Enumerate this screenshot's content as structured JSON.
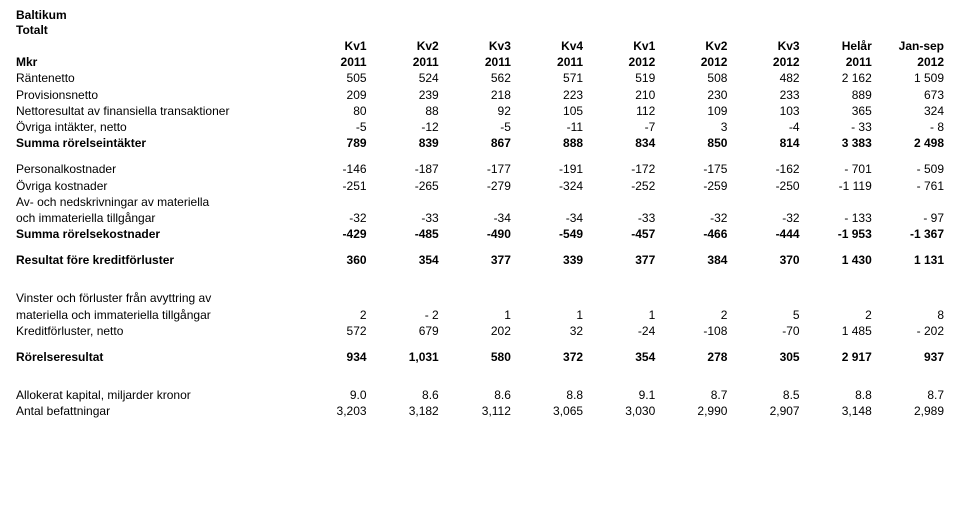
{
  "title1": "Baltikum",
  "title2": "Totalt",
  "columns": {
    "label_top": "",
    "label_bottom": "Mkr",
    "tops": [
      "Kv1",
      "Kv2",
      "Kv3",
      "Kv4",
      "Kv1",
      "Kv2",
      "Kv3",
      "Helår",
      "Jan-sep"
    ],
    "bottoms": [
      "2011",
      "2011",
      "2011",
      "2011",
      "2012",
      "2012",
      "2012",
      "2011",
      "2012"
    ]
  },
  "rows": [
    {
      "label": "Räntenetto",
      "vals": [
        "505",
        "524",
        "562",
        "571",
        "519",
        "508",
        "482",
        "2 162",
        "1 509"
      ]
    },
    {
      "label": "Provisionsnetto",
      "vals": [
        "209",
        "239",
        "218",
        "223",
        "210",
        "230",
        "233",
        "889",
        "673"
      ]
    },
    {
      "label": "Nettoresultat av finansiella transaktioner",
      "vals": [
        "80",
        "88",
        "92",
        "105",
        "112",
        "109",
        "103",
        "365",
        "324"
      ]
    },
    {
      "label": "Övriga intäkter, netto",
      "vals": [
        "-5",
        "-12",
        "-5",
        "-11",
        "-7",
        "3",
        "-4",
        "- 33",
        "- 8"
      ]
    },
    {
      "label": "Summa rörelseintäkter",
      "bold": true,
      "vals": [
        "789",
        "839",
        "867",
        "888",
        "834",
        "850",
        "814",
        "3 383",
        "2 498"
      ]
    },
    {
      "spacer": true
    },
    {
      "label": "Personalkostnader",
      "vals": [
        "-146",
        "-187",
        "-177",
        "-191",
        "-172",
        "-175",
        "-162",
        "- 701",
        "- 509"
      ]
    },
    {
      "label": "Övriga kostnader",
      "vals": [
        "-251",
        "-265",
        "-279",
        "-324",
        "-252",
        "-259",
        "-250",
        "-1 119",
        "- 761"
      ]
    },
    {
      "label": "Av- och nedskrivningar av materiella",
      "vals": [
        "",
        "",
        "",
        "",
        "",
        "",
        "",
        "",
        ""
      ]
    },
    {
      "label": "och immateriella tillgångar",
      "vals": [
        "-32",
        "-33",
        "-34",
        "-34",
        "-33",
        "-32",
        "-32",
        "- 133",
        "- 97"
      ]
    },
    {
      "label": "Summa rörelsekostnader",
      "bold": true,
      "vals": [
        "-429",
        "-485",
        "-490",
        "-549",
        "-457",
        "-466",
        "-444",
        "-1 953",
        "-1 367"
      ]
    },
    {
      "spacer": true
    },
    {
      "label": "Resultat före kreditförluster",
      "bold": true,
      "vals": [
        "360",
        "354",
        "377",
        "339",
        "377",
        "384",
        "370",
        "1 430",
        "1 131"
      ]
    },
    {
      "spacer_big": true
    },
    {
      "label": "Vinster och förluster från avyttring av",
      "vals": [
        "",
        "",
        "",
        "",
        "",
        "",
        "",
        "",
        ""
      ]
    },
    {
      "label": "materiella och immateriella tillgångar",
      "vals": [
        "2",
        "- 2",
        "1",
        "1",
        "1",
        "2",
        "5",
        "2",
        "8"
      ]
    },
    {
      "label": "Kreditförluster, netto",
      "vals": [
        "572",
        "679",
        "202",
        "32",
        "-24",
        "-108",
        "-70",
        "1 485",
        "- 202"
      ]
    },
    {
      "spacer": true
    },
    {
      "label": "Rörelseresultat",
      "bold": true,
      "vals": [
        "934",
        "1,031",
        "580",
        "372",
        "354",
        "278",
        "305",
        "2 917",
        "937"
      ]
    },
    {
      "spacer_big": true
    },
    {
      "label": "Allokerat kapital, miljarder kronor",
      "vals": [
        "9.0",
        "8.6",
        "8.6",
        "8.8",
        "9.1",
        "8.7",
        "8.5",
        "8.8",
        "8.7"
      ]
    },
    {
      "label": "Antal befattningar",
      "vals": [
        "3,203",
        "3,182",
        "3,112",
        "3,065",
        "3,030",
        "2,990",
        "2,907",
        "3,148",
        "2,989"
      ]
    }
  ]
}
